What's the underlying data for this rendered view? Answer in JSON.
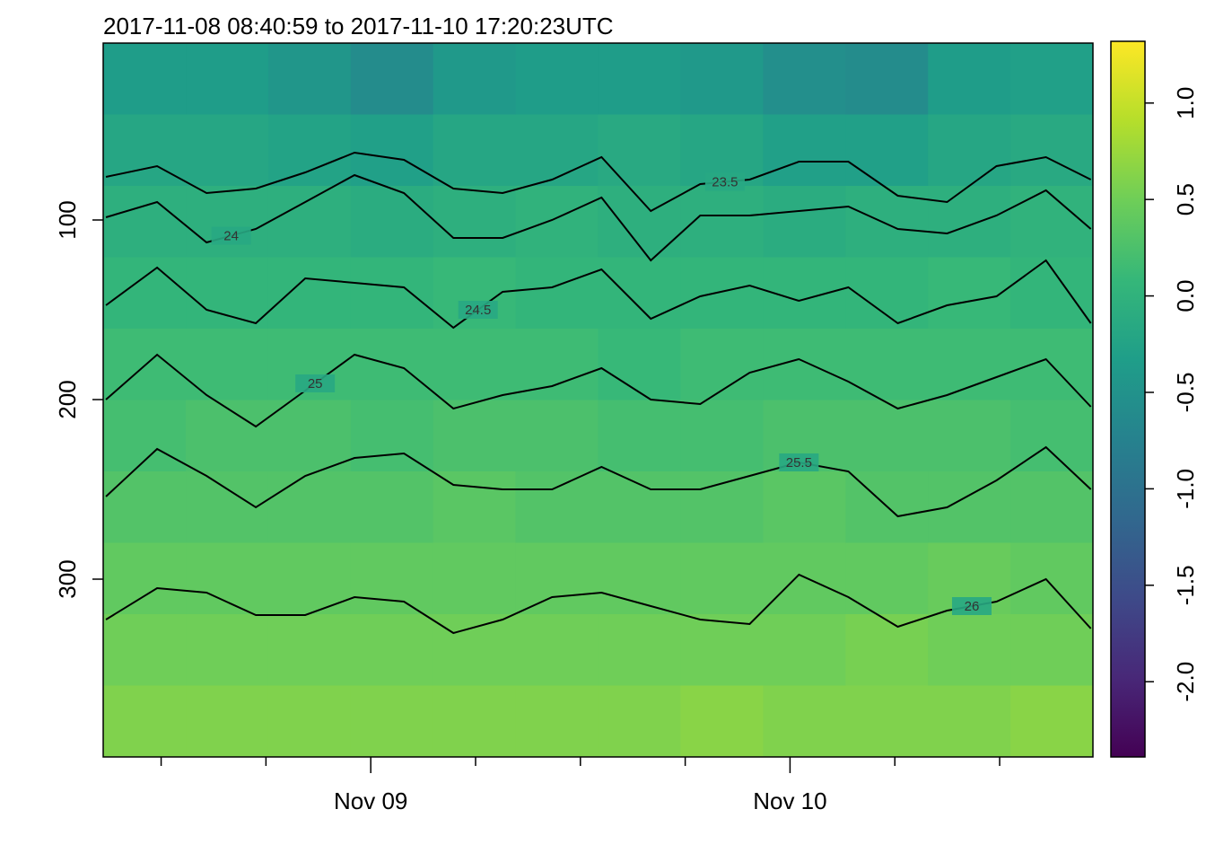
{
  "chart_data": {
    "type": "heatmap",
    "title": "2017-11-08 08:40:59 to 2017-11-10 17:20:23UTC",
    "xlim": [
      8.683,
      65.34
    ],
    "xticks": [
      {
        "value": 24,
        "label": "Nov 09"
      },
      {
        "value": 48,
        "label": "Nov 10"
      }
    ],
    "xminorticks": [
      12,
      18,
      30,
      36,
      42,
      54,
      60
    ],
    "ylim": [
      399,
      1.5
    ],
    "yticks": [
      100,
      200,
      300
    ],
    "x_edges": [
      8.68,
      13.41,
      18.13,
      22.85,
      27.57,
      32.29,
      37.01,
      41.73,
      46.46,
      51.18,
      55.9,
      60.62,
      65.34
    ],
    "y_edges": [
      1.5,
      41.25,
      81,
      120.75,
      160.5,
      200.25,
      240,
      279.75,
      319.5,
      359.25,
      399
    ],
    "z": [
      [
        -0.35,
        -0.35,
        -0.45,
        -0.6,
        -0.4,
        -0.35,
        -0.35,
        -0.4,
        -0.55,
        -0.6,
        -0.35,
        -0.3
      ],
      [
        -0.2,
        -0.2,
        -0.25,
        -0.3,
        -0.2,
        -0.2,
        -0.15,
        -0.2,
        -0.3,
        -0.3,
        -0.2,
        -0.15
      ],
      [
        -0.05,
        -0.05,
        -0.05,
        -0.1,
        -0.05,
        0,
        -0.05,
        -0.05,
        -0.1,
        -0.05,
        -0.05,
        0
      ],
      [
        0.05,
        0.05,
        0.05,
        0.05,
        0.1,
        0.05,
        0.05,
        0.05,
        0.05,
        0.05,
        0.1,
        0.05
      ],
      [
        0.15,
        0.15,
        0.15,
        0.15,
        0.15,
        0.15,
        0.1,
        0.15,
        0.15,
        0.15,
        0.15,
        0.15
      ],
      [
        0.2,
        0.25,
        0.25,
        0.2,
        0.25,
        0.25,
        0.2,
        0.2,
        0.25,
        0.25,
        0.25,
        0.2
      ],
      [
        0.3,
        0.3,
        0.3,
        0.3,
        0.35,
        0.3,
        0.3,
        0.3,
        0.35,
        0.3,
        0.3,
        0.3
      ],
      [
        0.4,
        0.4,
        0.4,
        0.4,
        0.4,
        0.4,
        0.4,
        0.4,
        0.4,
        0.4,
        0.45,
        0.4
      ],
      [
        0.5,
        0.5,
        0.5,
        0.5,
        0.5,
        0.5,
        0.5,
        0.5,
        0.5,
        0.55,
        0.5,
        0.5
      ],
      [
        0.6,
        0.6,
        0.6,
        0.6,
        0.6,
        0.6,
        0.6,
        0.65,
        0.6,
        0.6,
        0.6,
        0.65
      ]
    ],
    "zlim": [
      -2.39,
      1.32
    ],
    "zticks": [
      {
        "value": -2,
        "label": "-2.0"
      },
      -1.5,
      {
        "value": -1,
        "label": "-1.0"
      },
      -0.5,
      {
        "value": 0,
        "label": "0.0"
      },
      {
        "value": 0.5,
        "label": "0.5"
      },
      {
        "value": 1,
        "label": "1.0"
      }
    ],
    "colormap": "viridis",
    "contour_color": "#000000",
    "contour_x": [
      8.84,
      11.77,
      14.6,
      17.42,
      20.25,
      23.07,
      25.9,
      28.73,
      31.55,
      34.38,
      37.21,
      40.03,
      42.86,
      45.69,
      48.51,
      51.34,
      54.17,
      56.99,
      59.82,
      62.65,
      65.22
    ],
    "contours": [
      {
        "level": 23.5,
        "values": [
          76,
          70,
          85,
          82.5,
          73.5,
          62.5,
          66.5,
          82.5,
          85,
          77.5,
          65,
          95,
          80,
          77.5,
          67.5,
          67.5,
          86.5,
          90,
          70,
          65,
          77.5
        ]
      },
      {
        "level": 24,
        "values": [
          98.5,
          90,
          112.5,
          105,
          90,
          75,
          85,
          110,
          110,
          100,
          87.5,
          122.5,
          97.5,
          97.5,
          95,
          92.5,
          105,
          107.5,
          97.5,
          83.5,
          105
        ]
      },
      {
        "level": 24.5,
        "values": [
          147.5,
          126.5,
          150,
          157.5,
          132.5,
          135,
          137.5,
          160,
          140,
          137.5,
          127.5,
          155,
          142.5,
          136.5,
          145,
          137.5,
          157.5,
          147.5,
          142.5,
          122.5,
          157.5
        ]
      },
      {
        "level": 25,
        "values": [
          200,
          175,
          197.5,
          215,
          195,
          175,
          182.5,
          205,
          197.5,
          192.5,
          182.5,
          200,
          202.5,
          185,
          177.5,
          190,
          205,
          197.5,
          187.5,
          177.5,
          204
        ]
      },
      {
        "level": 25.5,
        "values": [
          254,
          227.5,
          242.5,
          260,
          242.5,
          232.5,
          230,
          247.5,
          250,
          250,
          237.5,
          250,
          250,
          242.5,
          235,
          240,
          265,
          260,
          245,
          226.5,
          250
        ]
      },
      {
        "level": 26,
        "values": [
          322.5,
          305,
          307.5,
          320,
          320,
          310,
          312.5,
          330,
          322.5,
          310,
          307.5,
          315,
          322.5,
          325,
          297.5,
          310,
          326.5,
          317.5,
          312.5,
          300,
          327.5
        ]
      }
    ]
  }
}
